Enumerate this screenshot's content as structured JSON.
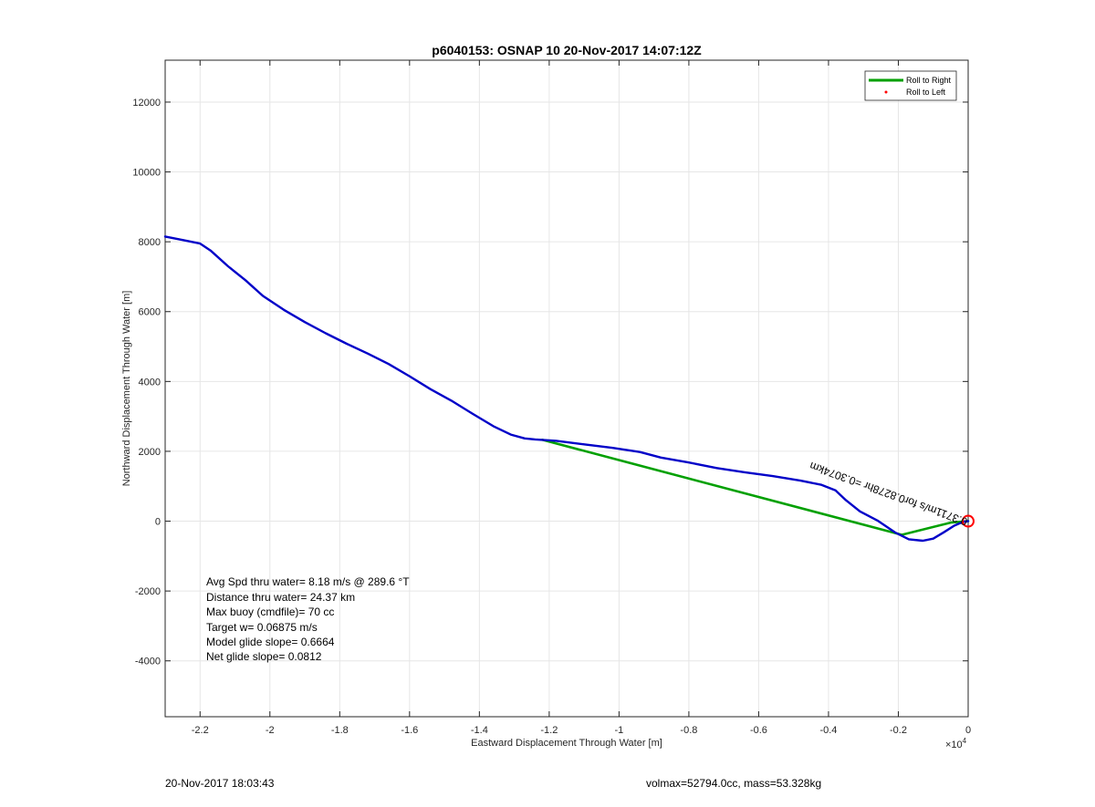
{
  "chart_data": {
    "type": "line",
    "title": "p6040153: OSNAP 10 20-Nov-2017 14:07:12Z",
    "xlabel": "Eastward Displacement Through Water [m]",
    "ylabel": "Northward Displacement Through Water [m]",
    "x_exponent_label": "×10",
    "x_exponent_power": "4",
    "xlim": [
      -2.3,
      0
    ],
    "ylim": [
      -5600,
      13200
    ],
    "x_scale_note": "x values in units of 10^4 m",
    "xticks": [
      -2.2,
      -2,
      -1.8,
      -1.6,
      -1.4,
      -1.2,
      -1,
      -0.8,
      -0.6,
      -0.4,
      -0.2,
      0
    ],
    "xtick_labels": [
      "-2.2",
      "-2",
      "-1.8",
      "-1.6",
      "-1.4",
      "-1.2",
      "-1",
      "-0.8",
      "-0.6",
      "-0.4",
      "-0.2",
      "0"
    ],
    "yticks": [
      -4000,
      -2000,
      0,
      2000,
      4000,
      6000,
      8000,
      10000,
      12000
    ],
    "ytick_labels": [
      "-4000",
      "-2000",
      "0",
      "2000",
      "4000",
      "6000",
      "8000",
      "10000",
      "12000"
    ],
    "grid": true,
    "legend_position": "top-right",
    "series": [
      {
        "name": "Roll to Right",
        "color": "#00a000",
        "x": [
          -1.22,
          -0.19,
          -0.05,
          0
        ],
        "y": [
          2330,
          -390,
          -40,
          0
        ]
      },
      {
        "name": "Roll to Left",
        "color": "#ff0000",
        "marker": "dot",
        "x": [],
        "y": []
      },
      {
        "name": "",
        "color": "#0000c8",
        "x": [
          -2.3,
          -2.25,
          -2.2,
          -2.17,
          -2.12,
          -2.07,
          -2.02,
          -1.96,
          -1.9,
          -1.84,
          -1.78,
          -1.72,
          -1.66,
          -1.6,
          -1.54,
          -1.48,
          -1.42,
          -1.36,
          -1.31,
          -1.27,
          -1.24,
          -1.18,
          -1.1,
          -1.02,
          -0.94,
          -0.88,
          -0.8,
          -0.72,
          -0.64,
          -0.56,
          -0.48,
          -0.42,
          -0.38,
          -0.35,
          -0.31,
          -0.26,
          -0.21,
          -0.17,
          -0.13,
          -0.1,
          -0.07,
          -0.04,
          -0.015,
          0
        ],
        "y": [
          8150,
          8050,
          7950,
          7750,
          7300,
          6900,
          6450,
          6050,
          5700,
          5380,
          5080,
          4800,
          4500,
          4150,
          3780,
          3450,
          3080,
          2720,
          2480,
          2370,
          2340,
          2300,
          2200,
          2100,
          1980,
          1820,
          1680,
          1520,
          1400,
          1290,
          1160,
          1040,
          880,
          600,
          280,
          20,
          -320,
          -520,
          -560,
          -500,
          -320,
          -130,
          -20,
          0
        ]
      }
    ],
    "circle_marker": {
      "x": 0,
      "y": 0,
      "color": "#ff0000"
    },
    "rotated_annotation": "0.3711m/s for0.8278hr =0.3074km"
  },
  "annotations": {
    "lines": [
      "Avg Spd thru water=  8.18 m/s @ 289.6 °T",
      "Distance thru water= 24.37 km",
      "Max buoy (cmdfile)= 70 cc",
      "Target w= 0.06875 m/s",
      "Model glide slope= 0.6664",
      "Net glide slope= 0.0812"
    ]
  },
  "footer": {
    "left": "20-Nov-2017 18:03:43",
    "right": "volmax=52794.0cc, mass=53.328kg"
  }
}
